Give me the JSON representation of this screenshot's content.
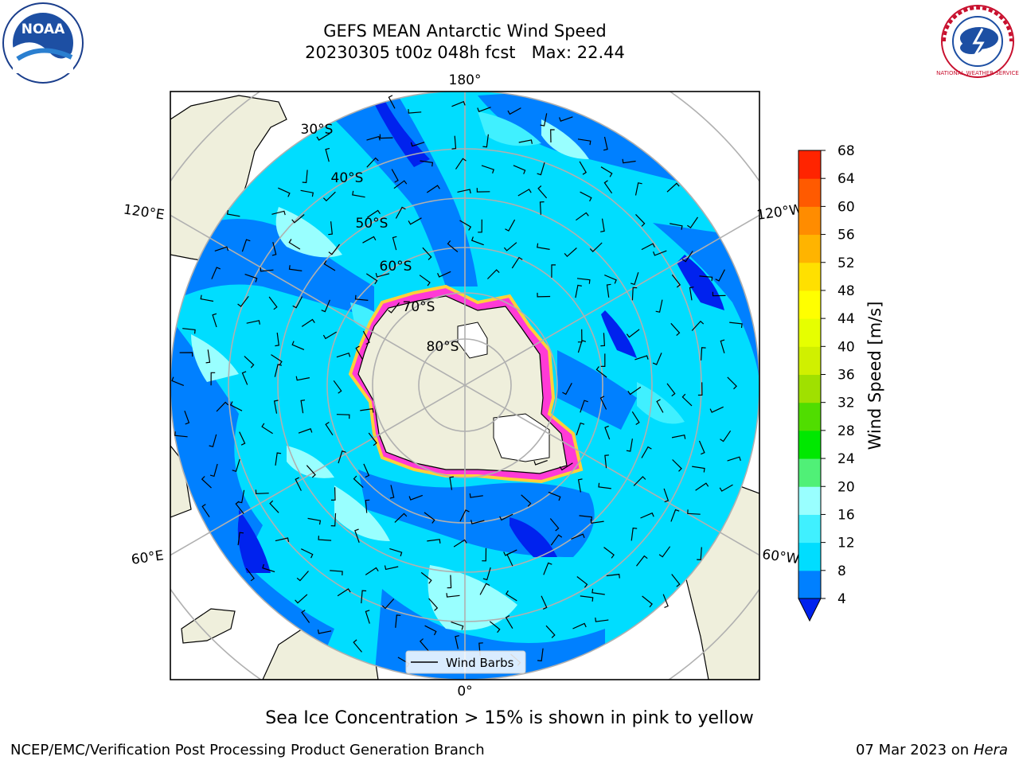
{
  "title": {
    "line1": "GEFS MEAN Antarctic Wind Speed",
    "line2": "20230305 t00z 048h fcst   Max: 22.44"
  },
  "map": {
    "longitude_labels": {
      "top": "180°",
      "bottom": "0°",
      "upper_left": "120°E",
      "upper_right": "120°W",
      "lower_left": "60°E",
      "lower_right": "60°W"
    },
    "latitude_labels": [
      "30°S",
      "40°S",
      "50°S",
      "60°S",
      "70°S",
      "80°S"
    ],
    "legend": {
      "label": "Wind Barbs"
    }
  },
  "colorbar": {
    "label": "Wind Speed [m/s]",
    "ticks": [
      "4",
      "8",
      "12",
      "16",
      "20",
      "24",
      "28",
      "32",
      "36",
      "40",
      "44",
      "48",
      "52",
      "56",
      "60",
      "64",
      "68"
    ],
    "colors": [
      "#0080ff",
      "#00ddff",
      "#40f0ff",
      "#99ffff",
      "#50f077",
      "#00e800",
      "#50dd00",
      "#a0e000",
      "#d0f000",
      "#e6ff00",
      "#ffff00",
      "#ffe000",
      "#ffb400",
      "#ff8c00",
      "#ff5a00",
      "#ff2400",
      "#ff0000"
    ],
    "under_color": "#0022ee"
  },
  "note": "Sea Ice Concentration > 15% is shown in pink to yellow",
  "footer": {
    "left": "NCEP/EMC/Verification Post Processing Product Generation Branch",
    "date": "07 Mar 2023 on",
    "machine": "Hera"
  },
  "logos": {
    "noaa_text": "NOAA",
    "nws_text": "NATIONAL WEATHER SERVICE"
  }
}
